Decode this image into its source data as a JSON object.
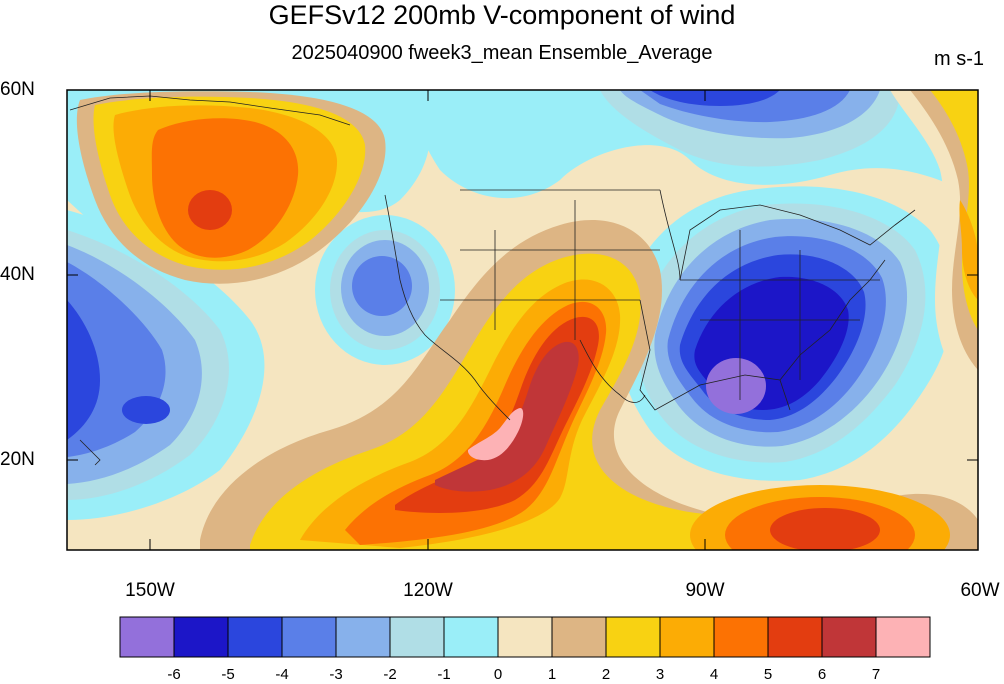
{
  "title": "GEFSv12 200mb V-component of wind",
  "subtitle": "2025040900 fweek3_mean Ensemble_Average",
  "units": "m s-1",
  "lat_labels": [
    "60N",
    "40N",
    "20N"
  ],
  "lon_labels": [
    "150W",
    "120W",
    "90W",
    "60W"
  ],
  "colorbar": {
    "colors": [
      "#9370DB",
      "#1C16C8",
      "#2B46DD",
      "#5A7FE8",
      "#87B1EB",
      "#B0DEE6",
      "#9AEEF8",
      "#F5E5C0",
      "#DDB584",
      "#F8D212",
      "#FCAC05",
      "#FC7203",
      "#E33D10",
      "#C03638",
      "#FDB2B5"
    ],
    "labels": [
      "-6",
      "-5",
      "-4",
      "-3",
      "-2",
      "-1",
      "0",
      "1",
      "2",
      "3",
      "4",
      "5",
      "6",
      "7"
    ]
  }
}
